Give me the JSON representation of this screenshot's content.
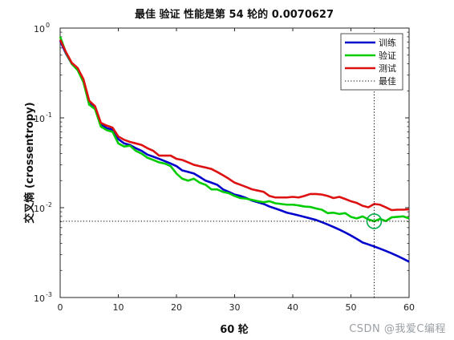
{
  "chart_data": {
    "type": "line",
    "title": "最佳 验证 性能是第 54 轮的 0.0070627",
    "xlabel": "60 轮",
    "ylabel": "交叉熵 (crossentropy)",
    "xlim": [
      0,
      60
    ],
    "ylim": [
      0.001,
      1
    ],
    "yscale": "log",
    "x_ticks": [
      0,
      10,
      20,
      30,
      40,
      50,
      60
    ],
    "y_ticks": [
      {
        "value": 0.001,
        "base": "10",
        "exp": "-3"
      },
      {
        "value": 0.01,
        "base": "10",
        "exp": "-2"
      },
      {
        "value": 0.1,
        "base": "10",
        "exp": "-1"
      },
      {
        "value": 1,
        "base": "10",
        "exp": "0"
      }
    ],
    "grid": false,
    "legend_position": "top-right",
    "series": [
      {
        "name": "训练",
        "color": "#0000cc",
        "x": [
          0,
          1,
          2,
          3,
          4,
          5,
          6,
          7,
          8,
          9,
          10,
          11,
          12,
          13,
          14,
          15,
          16,
          17,
          18,
          19,
          20,
          21,
          22,
          23,
          24,
          25,
          26,
          27,
          28,
          29,
          30,
          31,
          32,
          33,
          34,
          35,
          36,
          37,
          38,
          39,
          40,
          41,
          42,
          43,
          44,
          45,
          46,
          47,
          48,
          49,
          50,
          51,
          52,
          53,
          54,
          55,
          56,
          57,
          58,
          59,
          60
        ],
        "y": [
          0.72,
          0.52,
          0.4,
          0.35,
          0.26,
          0.15,
          0.13,
          0.085,
          0.077,
          0.074,
          0.058,
          0.052,
          0.05,
          0.046,
          0.043,
          0.039,
          0.037,
          0.035,
          0.033,
          0.031,
          0.029,
          0.026,
          0.025,
          0.024,
          0.022,
          0.02,
          0.019,
          0.018,
          0.016,
          0.015,
          0.014,
          0.0135,
          0.0128,
          0.012,
          0.0115,
          0.011,
          0.0103,
          0.0098,
          0.0093,
          0.0088,
          0.0085,
          0.0082,
          0.0079,
          0.0076,
          0.0073,
          0.0069,
          0.0065,
          0.0061,
          0.0057,
          0.0053,
          0.0049,
          0.0045,
          0.0041,
          0.0039,
          0.0037,
          0.0035,
          0.0033,
          0.0031,
          0.0029,
          0.0027,
          0.0025
        ]
      },
      {
        "name": "验证",
        "color": "#00cc00",
        "x": [
          0,
          1,
          2,
          3,
          4,
          5,
          6,
          7,
          8,
          9,
          10,
          11,
          12,
          13,
          14,
          15,
          16,
          17,
          18,
          19,
          20,
          21,
          22,
          23,
          24,
          25,
          26,
          27,
          28,
          29,
          30,
          31,
          32,
          33,
          34,
          35,
          36,
          37,
          38,
          39,
          40,
          41,
          42,
          43,
          44,
          45,
          46,
          47,
          48,
          49,
          50,
          51,
          52,
          53,
          54,
          55,
          56,
          57,
          58,
          59,
          60
        ],
        "y": [
          0.8,
          0.53,
          0.4,
          0.34,
          0.25,
          0.14,
          0.125,
          0.08,
          0.073,
          0.07,
          0.052,
          0.048,
          0.049,
          0.043,
          0.04,
          0.036,
          0.034,
          0.032,
          0.031,
          0.029,
          0.024,
          0.021,
          0.02,
          0.021,
          0.019,
          0.018,
          0.016,
          0.016,
          0.015,
          0.0145,
          0.0135,
          0.0128,
          0.0126,
          0.0122,
          0.0118,
          0.0115,
          0.0118,
          0.0112,
          0.011,
          0.0108,
          0.0108,
          0.0106,
          0.0103,
          0.0102,
          0.0098,
          0.0095,
          0.0087,
          0.0088,
          0.0085,
          0.0087,
          0.0079,
          0.0076,
          0.008,
          0.0074,
          0.0070627,
          0.0075,
          0.0071,
          0.0078,
          0.0079,
          0.008,
          0.0076
        ]
      },
      {
        "name": "测试",
        "color": "#dd1111",
        "x": [
          0,
          1,
          2,
          3,
          4,
          5,
          6,
          7,
          8,
          9,
          10,
          11,
          12,
          13,
          14,
          15,
          16,
          17,
          18,
          19,
          20,
          21,
          22,
          23,
          24,
          25,
          26,
          27,
          28,
          29,
          30,
          31,
          32,
          33,
          34,
          35,
          36,
          37,
          38,
          39,
          40,
          41,
          42,
          43,
          44,
          45,
          46,
          47,
          48,
          49,
          50,
          51,
          52,
          53,
          54,
          55,
          56,
          57,
          58,
          59,
          60
        ],
        "y": [
          0.74,
          0.54,
          0.41,
          0.36,
          0.27,
          0.155,
          0.135,
          0.088,
          0.082,
          0.078,
          0.062,
          0.057,
          0.054,
          0.052,
          0.05,
          0.046,
          0.043,
          0.038,
          0.038,
          0.038,
          0.035,
          0.034,
          0.032,
          0.03,
          0.029,
          0.028,
          0.027,
          0.025,
          0.023,
          0.021,
          0.019,
          0.018,
          0.017,
          0.016,
          0.0155,
          0.015,
          0.0135,
          0.013,
          0.013,
          0.013,
          0.0132,
          0.013,
          0.0135,
          0.0142,
          0.0142,
          0.014,
          0.0135,
          0.0128,
          0.0132,
          0.0125,
          0.0118,
          0.0113,
          0.0105,
          0.0101,
          0.011,
          0.0108,
          0.0101,
          0.0094,
          0.0095,
          0.0095,
          0.0096
        ]
      },
      {
        "name": "最佳",
        "color": "#000000",
        "style": "dotted",
        "best_epoch": 54,
        "best_value": 0.0070627
      }
    ]
  },
  "watermark": "CSDN @我爱C编程"
}
